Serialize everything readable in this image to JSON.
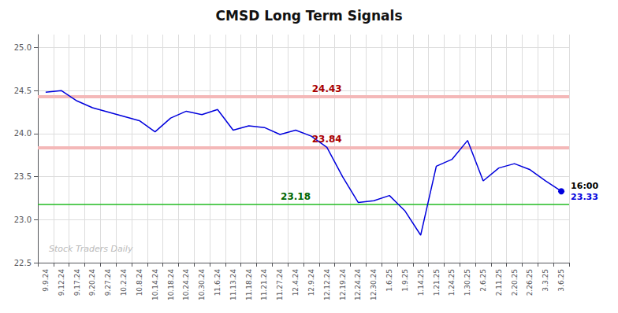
{
  "chart_data": {
    "type": "line",
    "title": "CMSD Long Term Signals",
    "categories": [
      "9.9.24",
      "9.12.24",
      "9.17.24",
      "9.20.24",
      "9.27.24",
      "10.2.24",
      "10.8.24",
      "10.14.24",
      "10.18.24",
      "10.24.24",
      "10.30.24",
      "11.6.24",
      "11.13.24",
      "11.18.24",
      "11.21.24",
      "11.27.24",
      "12.4.24",
      "12.9.24",
      "12.12.24",
      "12.19.24",
      "12.24.24",
      "12.30.24",
      "1.6.25",
      "1.9.25",
      "1.14.25",
      "1.21.25",
      "1.24.25",
      "1.30.25",
      "2.6.25",
      "2.11.25",
      "2.20.25",
      "2.26.25",
      "3.3.25",
      "3.6.25"
    ],
    "values": [
      24.48,
      24.5,
      24.38,
      24.3,
      24.25,
      24.2,
      24.15,
      24.02,
      24.18,
      24.26,
      24.22,
      24.28,
      24.04,
      24.09,
      24.07,
      23.99,
      24.04,
      23.97,
      23.84,
      23.5,
      23.2,
      23.22,
      23.28,
      23.1,
      22.82,
      23.62,
      23.7,
      23.92,
      23.45,
      23.6,
      23.65,
      23.58,
      23.45,
      23.33
    ],
    "color": "#0000dd",
    "ylim": [
      22.5,
      25.15
    ],
    "yticks": [
      22.5,
      {
        "value": 23.0,
        "label": "23.0"
      },
      23.5,
      {
        "value": 24.0,
        "label": "24.0"
      },
      24.5,
      {
        "value": 25.0,
        "label": "25.0"
      }
    ],
    "grid": true,
    "hlines": [
      {
        "value": 24.43,
        "color": "#f4b8b8",
        "label": "24.43",
        "label_color": "#aa0000",
        "label_at": "12.12.24"
      },
      {
        "value": 23.84,
        "color": "#f4b8b8",
        "label": "23.84",
        "label_color": "#aa0000",
        "label_at": "12.12.24"
      },
      {
        "value": 23.18,
        "color": "#22bb22",
        "label": "23.18",
        "label_color": "#006600",
        "label_at": "12.4.24"
      }
    ],
    "end_labels": [
      {
        "text": "16:00",
        "color": "#000000"
      },
      {
        "text": "23.33",
        "color": "#0000dd"
      }
    ],
    "watermark": {
      "text": "Stock Traders Daily",
      "color": "#bbbbbb"
    }
  }
}
